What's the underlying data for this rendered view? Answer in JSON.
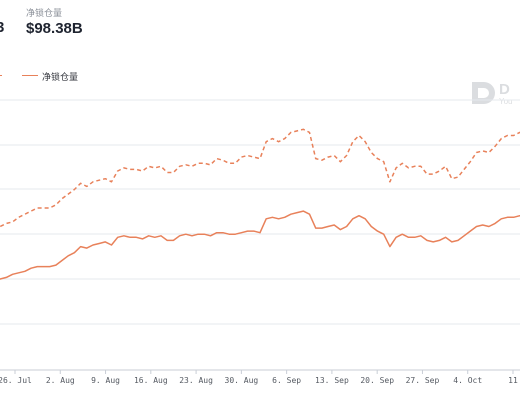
{
  "header": {
    "prev_stat_value": "3",
    "stat": {
      "label": "净锁仓量",
      "value": "$98.38B"
    }
  },
  "legend": {
    "items": [
      {
        "label": "",
        "style": "dashed"
      },
      {
        "label": "净锁仓量",
        "style": "solid"
      }
    ]
  },
  "watermark": {
    "text": "D",
    "sub": "You"
  },
  "colors": {
    "series": "#e8815a",
    "grid": "#e6e9ee",
    "axis": "#c9ced6"
  },
  "chart_data": {
    "type": "line",
    "xlabel": "",
    "ylabel": "",
    "grid": true,
    "legend_position": "top-left",
    "x_tick_labels": [
      "26. Jul",
      "2. Aug",
      "9. Aug",
      "16. Aug",
      "23. Aug",
      "30. Aug",
      "6. Sep",
      "13. Sep",
      "20. Sep",
      "27. Sep",
      "4. Oct",
      "11"
    ],
    "series": [
      {
        "name": "",
        "style": "dashed",
        "values": [
          91,
          93,
          95,
          96,
          99,
          101,
          103,
          105,
          105,
          105,
          107,
          111,
          114,
          117,
          121,
          119,
          122,
          123,
          124,
          122,
          129,
          131,
          130,
          130,
          129,
          132,
          131,
          132,
          128,
          128,
          132,
          133,
          132,
          134,
          134,
          133,
          137,
          136,
          134,
          134,
          138,
          139,
          138,
          137,
          148,
          150,
          148,
          150,
          154,
          155,
          156,
          154,
          137,
          136,
          138,
          139,
          135,
          139,
          148,
          152,
          148,
          141,
          137,
          135,
          122,
          131,
          134,
          131,
          132,
          132,
          127,
          127,
          129,
          132,
          124,
          125,
          130,
          135,
          141,
          142,
          141,
          145,
          150,
          152,
          152,
          154,
          152
        ]
      },
      {
        "name": "净锁仓量",
        "style": "solid",
        "values": [
          58,
          59,
          60,
          62,
          63,
          64,
          66,
          67,
          67,
          67,
          68,
          71,
          74,
          76,
          80,
          79,
          81,
          82,
          83,
          81,
          86,
          87,
          86,
          86,
          85,
          87,
          86,
          87,
          84,
          84,
          87,
          88,
          87,
          88,
          88,
          87,
          89,
          89,
          88,
          88,
          89,
          90,
          90,
          89,
          98,
          99,
          98,
          99,
          101,
          102,
          103,
          101,
          92,
          92,
          93,
          94,
          91,
          93,
          98,
          100,
          98,
          93,
          90,
          88,
          80,
          86,
          88,
          86,
          86,
          87,
          84,
          83,
          84,
          86,
          83,
          84,
          87,
          90,
          93,
          94,
          93,
          95,
          98,
          99,
          99,
          100,
          98
        ]
      }
    ],
    "ylim": [
      0,
      175
    ]
  }
}
